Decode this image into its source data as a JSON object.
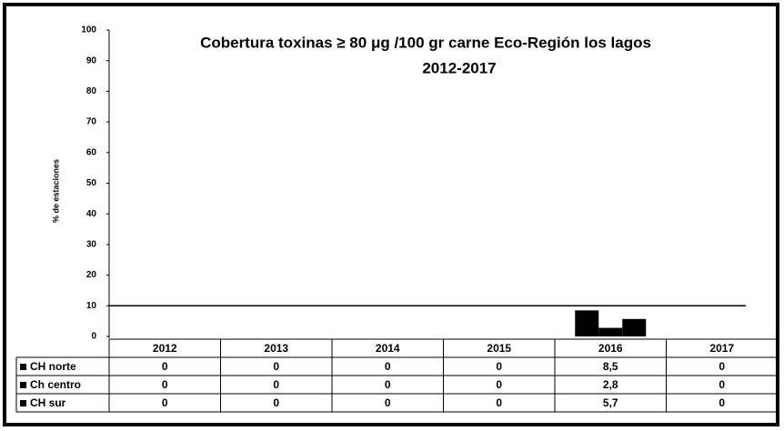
{
  "chart_data": {
    "type": "bar",
    "title": [
      "Cobertura toxinas ≥ 80 μg /100 gr carne  Eco-Región  los lagos",
      "2012-2017"
    ],
    "y_label": "% de estaciones",
    "categories": [
      "2012",
      "2013",
      "2014",
      "2015",
      "2016",
      "2017"
    ],
    "series": [
      {
        "name": "CH norte",
        "color": "#000000",
        "values": [
          0,
          0,
          0,
          0,
          8.5,
          0
        ],
        "value_labels": [
          "0",
          "0",
          "0",
          "0",
          "8,5",
          "0"
        ]
      },
      {
        "name": "Ch centro",
        "color": "#000000",
        "values": [
          0,
          0,
          0,
          0,
          2.8,
          0
        ],
        "value_labels": [
          "0",
          "0",
          "0",
          "0",
          "2,8",
          "0"
        ]
      },
      {
        "name": "CH sur",
        "color": "#000000",
        "values": [
          0,
          0,
          0,
          0,
          5.7,
          0
        ],
        "value_labels": [
          "0",
          "0",
          "0",
          "0",
          "5,7",
          "0"
        ]
      }
    ],
    "reference_line": 10,
    "ylim": [
      0,
      100
    ],
    "yticks": [
      0,
      10,
      20,
      30,
      40,
      50,
      60,
      70,
      80,
      90,
      100
    ],
    "grid": false
  }
}
